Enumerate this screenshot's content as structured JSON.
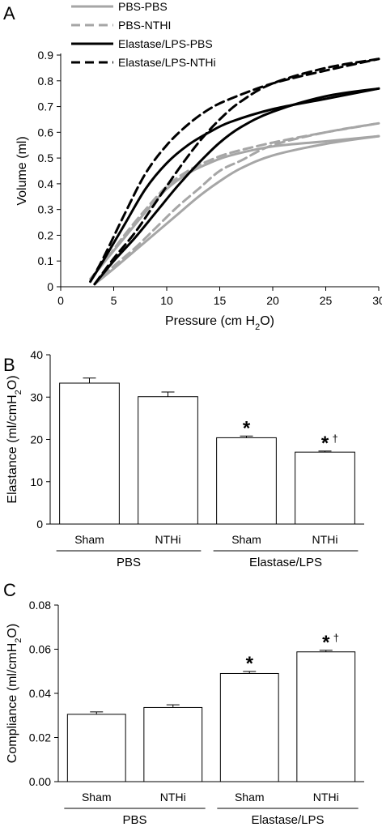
{
  "chart_data": [
    {
      "panel": "A",
      "type": "line",
      "xlabel": "Pressure (cm H2O)",
      "xlabel_main": "Pressure (cm H",
      "xlabel_sub": "2",
      "xlabel_end": "O)",
      "ylabel": "Volume (ml)",
      "xlim": [
        0,
        30
      ],
      "ylim": [
        0,
        0.9
      ],
      "xticks": [
        0,
        5,
        10,
        15,
        20,
        25,
        30
      ],
      "yticks": [
        0,
        0.1,
        0.2,
        0.3,
        0.4,
        0.5,
        0.6,
        0.7,
        0.8,
        0.9
      ],
      "xtick_labels": [
        "0",
        "5",
        "10",
        "15",
        "20",
        "25",
        "30"
      ],
      "ytick_labels": [
        "0",
        "0.1",
        "0.2",
        "0.3",
        "0.4",
        "0.5",
        "0.6",
        "0.7",
        "0.8",
        "0.9"
      ],
      "legend_position": "top-left",
      "grid": false,
      "series": [
        {
          "name": "PBS-PBS",
          "color": "#a6a6a6",
          "dash": "solid",
          "inflation": [
            [
              2.8,
              0.03
            ],
            [
              4,
              0.09
            ],
            [
              6,
              0.19
            ],
            [
              8,
              0.29
            ],
            [
              10,
              0.38
            ],
            [
              12,
              0.44
            ],
            [
              14,
              0.48
            ],
            [
              16,
              0.51
            ],
            [
              20,
              0.545
            ],
            [
              25,
              0.565
            ],
            [
              30,
              0.585
            ]
          ],
          "deflation": [
            [
              30,
              0.585
            ],
            [
              25,
              0.555
            ],
            [
              20,
              0.51
            ],
            [
              17,
              0.46
            ],
            [
              15,
              0.41
            ],
            [
              13,
              0.35
            ],
            [
              11,
              0.28
            ],
            [
              9,
              0.21
            ],
            [
              7,
              0.14
            ],
            [
              5,
              0.07
            ],
            [
              3.2,
              0.01
            ]
          ]
        },
        {
          "name": "PBS-NTHI",
          "color": "#a6a6a6",
          "dash": "dashed",
          "inflation": [
            [
              2.8,
              0.03
            ],
            [
              4,
              0.09
            ],
            [
              6,
              0.2
            ],
            [
              8,
              0.3
            ],
            [
              10,
              0.39
            ],
            [
              12,
              0.45
            ],
            [
              14,
              0.49
            ],
            [
              16,
              0.52
            ],
            [
              20,
              0.56
            ],
            [
              25,
              0.6
            ],
            [
              30,
              0.635
            ]
          ],
          "deflation": [
            [
              30,
              0.635
            ],
            [
              25,
              0.6
            ],
            [
              20,
              0.55
            ],
            [
              17,
              0.49
            ],
            [
              15,
              0.45
            ],
            [
              13,
              0.38
            ],
            [
              11,
              0.31
            ],
            [
              9,
              0.23
            ],
            [
              7,
              0.15
            ],
            [
              5,
              0.08
            ],
            [
              3.2,
              0.01
            ]
          ]
        },
        {
          "name": "Elastase/LPS-PBS",
          "color": "#000000",
          "dash": "solid",
          "inflation": [
            [
              2.8,
              0.02
            ],
            [
              4,
              0.1
            ],
            [
              6,
              0.24
            ],
            [
              8,
              0.38
            ],
            [
              10,
              0.48
            ],
            [
              12,
              0.55
            ],
            [
              14,
              0.6
            ],
            [
              16,
              0.64
            ],
            [
              20,
              0.69
            ],
            [
              25,
              0.73
            ],
            [
              30,
              0.77
            ]
          ],
          "deflation": [
            [
              30,
              0.77
            ],
            [
              25,
              0.74
            ],
            [
              20,
              0.68
            ],
            [
              17,
              0.62
            ],
            [
              15,
              0.56
            ],
            [
              13,
              0.48
            ],
            [
              11,
              0.39
            ],
            [
              9,
              0.29
            ],
            [
              7,
              0.19
            ],
            [
              5,
              0.1
            ],
            [
              3.2,
              0.01
            ]
          ]
        },
        {
          "name": "Elastase/LPS-NTHi",
          "color": "#000000",
          "dash": "dashed",
          "inflation": [
            [
              2.8,
              0.02
            ],
            [
              4,
              0.11
            ],
            [
              6,
              0.28
            ],
            [
              8,
              0.44
            ],
            [
              10,
              0.55
            ],
            [
              12,
              0.63
            ],
            [
              14,
              0.69
            ],
            [
              16,
              0.73
            ],
            [
              20,
              0.79
            ],
            [
              25,
              0.84
            ],
            [
              30,
              0.885
            ]
          ],
          "deflation": [
            [
              30,
              0.885
            ],
            [
              25,
              0.85
            ],
            [
              20,
              0.79
            ],
            [
              17,
              0.72
            ],
            [
              15,
              0.65
            ],
            [
              13,
              0.56
            ],
            [
              11,
              0.45
            ],
            [
              9,
              0.33
            ],
            [
              7,
              0.21
            ],
            [
              5,
              0.11
            ],
            [
              3.2,
              0.01
            ]
          ]
        }
      ]
    },
    {
      "panel": "B",
      "type": "bar",
      "ylabel": "Elastance (ml/cmH2O)",
      "ylabel_main": "Elastance (ml/cmH",
      "ylabel_sub": "2",
      "ylabel_end": "O)",
      "ylim": [
        0,
        40
      ],
      "yticks": [
        0,
        10,
        20,
        30,
        40
      ],
      "ytick_labels": [
        "0",
        "10",
        "20",
        "30",
        "40"
      ],
      "categories": [
        "Sham",
        "NTHi",
        "Sham",
        "NTHi"
      ],
      "groups": [
        {
          "label": "PBS",
          "members": [
            0,
            1
          ]
        },
        {
          "label": "Elastase/LPS",
          "members": [
            2,
            3
          ]
        }
      ],
      "values": [
        33.3,
        30.1,
        20.4,
        17.0
      ],
      "errors": [
        1.2,
        1.1,
        0.4,
        0.25
      ],
      "marks": [
        "",
        "",
        "*",
        "*"
      ],
      "dagger": [
        "",
        "",
        "",
        "†"
      ]
    },
    {
      "panel": "C",
      "type": "bar",
      "ylabel": "Compliance (ml/cmH2O)",
      "ylabel_main": "Compliance (ml/cmH",
      "ylabel_sub": "2",
      "ylabel_end": "O)",
      "ylim": [
        0,
        0.08
      ],
      "yticks": [
        0,
        0.02,
        0.04,
        0.06,
        0.08
      ],
      "ytick_labels": [
        "0.00",
        "0.02",
        "0.04",
        "0.06",
        "0.08"
      ],
      "categories": [
        "Sham",
        "NTHi",
        "Sham",
        "NTHi"
      ],
      "groups": [
        {
          "label": "PBS",
          "members": [
            0,
            1
          ]
        },
        {
          "label": "Elastase/LPS",
          "members": [
            2,
            3
          ]
        }
      ],
      "values": [
        0.0305,
        0.0336,
        0.049,
        0.0588
      ],
      "errors": [
        0.0011,
        0.0012,
        0.0009,
        0.0007
      ],
      "marks": [
        "",
        "",
        "*",
        "*"
      ],
      "dagger": [
        "",
        "",
        "",
        "†"
      ]
    }
  ]
}
